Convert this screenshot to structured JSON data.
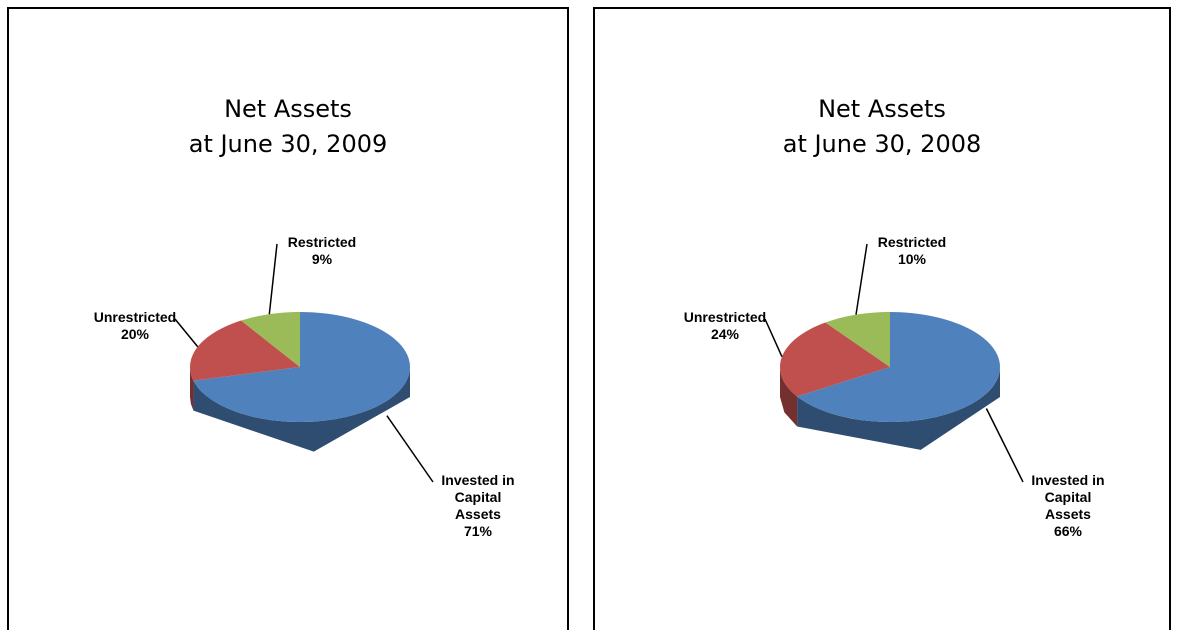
{
  "chart_data": [
    {
      "type": "pie",
      "title": "Net Assets",
      "subtitle": "at June 30, 2009",
      "categories": [
        "Invested in Capital Assets",
        "Unrestricted",
        "Restricted"
      ],
      "values": [
        71,
        20,
        9
      ],
      "value_labels": [
        "71%",
        "20%",
        "9%"
      ],
      "colors": [
        "#4f81bd",
        "#c0504d",
        "#9bbb59"
      ],
      "three_d": true
    },
    {
      "type": "pie",
      "title": "Net Assets",
      "subtitle": "at June 30, 2008",
      "categories": [
        "Invested in Capital Assets",
        "Unrestricted",
        "Restricted"
      ],
      "values": [
        66,
        24,
        10
      ],
      "value_labels": [
        "66%",
        "24%",
        "10%"
      ],
      "colors": [
        "#4f81bd",
        "#c0504d",
        "#9bbb59"
      ],
      "three_d": true
    }
  ]
}
